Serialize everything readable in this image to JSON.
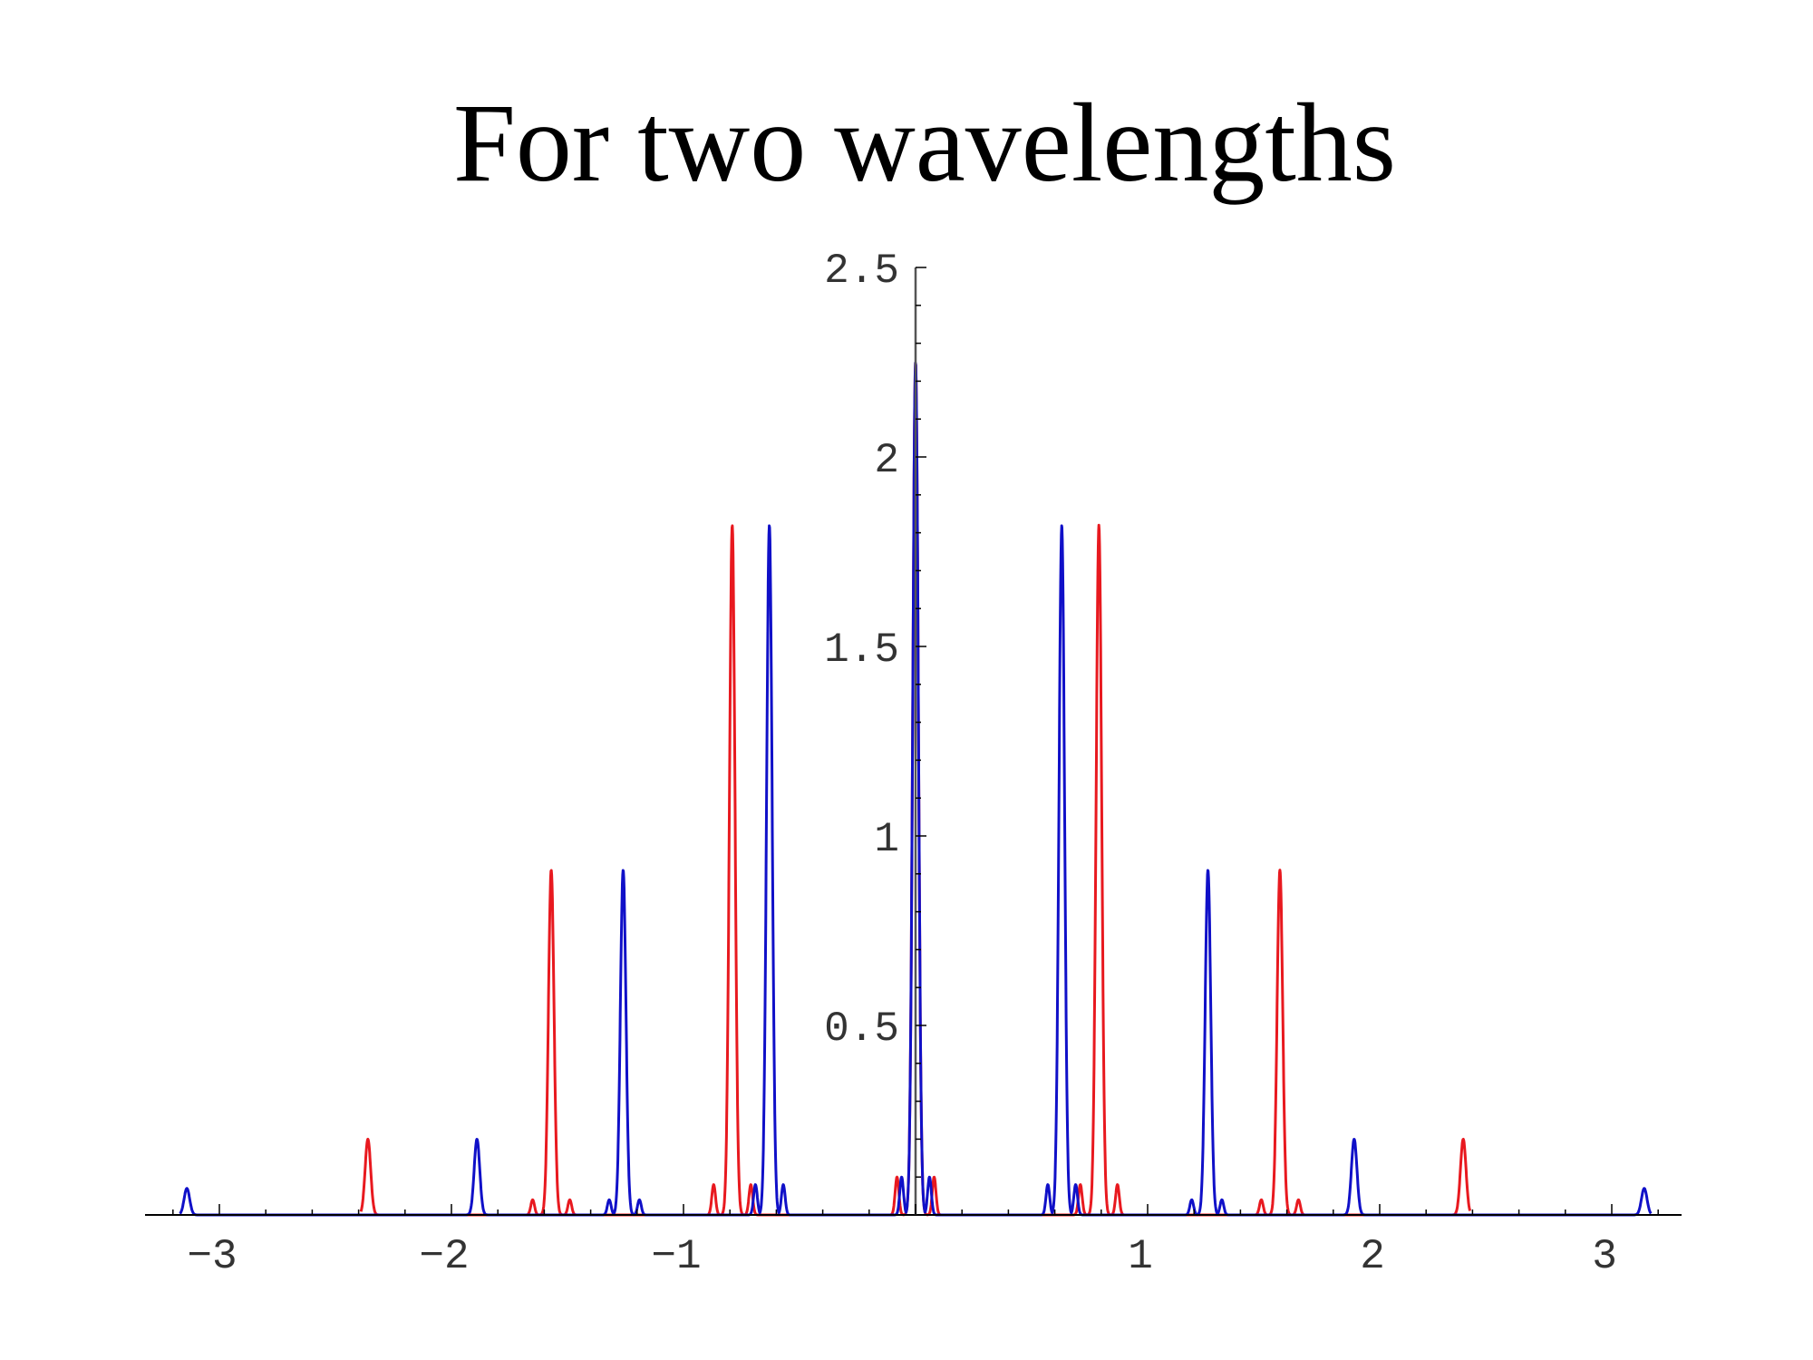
{
  "title": "For two wavelengths",
  "chart_data": {
    "type": "line",
    "title": "For two wavelengths",
    "xlabel": "",
    "ylabel": "",
    "xlim": [
      -3.3,
      3.3
    ],
    "ylim": [
      0,
      2.5
    ],
    "x_ticks": [
      {
        "value": -3,
        "label": "−3"
      },
      {
        "value": -2,
        "label": "−2"
      },
      {
        "value": -1,
        "label": "−1"
      },
      {
        "value": 1,
        "label": "1"
      },
      {
        "value": 2,
        "label": "2"
      },
      {
        "value": 3,
        "label": "3"
      }
    ],
    "y_ticks": [
      {
        "value": 0.5,
        "label": "0.5"
      },
      {
        "value": 1,
        "label": "1"
      },
      {
        "value": 1.5,
        "label": "1.5"
      },
      {
        "value": 2,
        "label": "2"
      },
      {
        "value": 2.5,
        "label": "2.5"
      }
    ],
    "grid": false,
    "series": [
      {
        "color": "#e8191f",
        "peaks": [
          {
            "x": -2.36,
            "y": 0.2
          },
          {
            "x": -1.57,
            "y": 0.91
          },
          {
            "x": -0.79,
            "y": 1.82
          },
          {
            "x": 0,
            "y": 2.25
          },
          {
            "x": 0.79,
            "y": 1.82
          },
          {
            "x": 1.57,
            "y": 0.91
          },
          {
            "x": 2.36,
            "y": 0.2
          }
        ],
        "side_lobes": [
          {
            "x": -1.65,
            "y": 0.04
          },
          {
            "x": -1.49,
            "y": 0.04
          },
          {
            "x": -0.87,
            "y": 0.08
          },
          {
            "x": -0.71,
            "y": 0.08
          },
          {
            "x": -0.08,
            "y": 0.1
          },
          {
            "x": 0.08,
            "y": 0.1
          },
          {
            "x": 0.71,
            "y": 0.08
          },
          {
            "x": 0.87,
            "y": 0.08
          },
          {
            "x": 1.49,
            "y": 0.04
          },
          {
            "x": 1.65,
            "y": 0.04
          }
        ]
      },
      {
        "color": "#1010c8",
        "peaks": [
          {
            "x": -3.14,
            "y": 0.07
          },
          {
            "x": -1.89,
            "y": 0.2
          },
          {
            "x": -1.26,
            "y": 0.91
          },
          {
            "x": -0.63,
            "y": 1.82
          },
          {
            "x": 0,
            "y": 2.25
          },
          {
            "x": 0.63,
            "y": 1.82
          },
          {
            "x": 1.26,
            "y": 0.91
          },
          {
            "x": 1.89,
            "y": 0.2
          },
          {
            "x": 3.14,
            "y": 0.07
          }
        ],
        "side_lobes": [
          {
            "x": -1.32,
            "y": 0.04
          },
          {
            "x": -1.19,
            "y": 0.04
          },
          {
            "x": -0.69,
            "y": 0.08
          },
          {
            "x": -0.57,
            "y": 0.08
          },
          {
            "x": -0.06,
            "y": 0.1
          },
          {
            "x": 0.06,
            "y": 0.1
          },
          {
            "x": 0.57,
            "y": 0.08
          },
          {
            "x": 0.69,
            "y": 0.08
          },
          {
            "x": 1.19,
            "y": 0.04
          },
          {
            "x": 1.32,
            "y": 0.04
          }
        ]
      }
    ]
  }
}
